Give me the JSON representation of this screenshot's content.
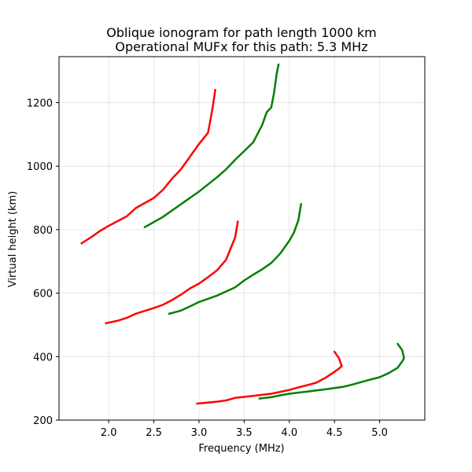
{
  "chart_data": {
    "type": "line",
    "title": "Oblique ionogram for path length 1000 km",
    "subtitle": "Operational MUFx for this path: 5.3 MHz",
    "xlabel": "Frequency (MHz)",
    "ylabel": "Virtual height (km)",
    "xlim": [
      1.45,
      5.5
    ],
    "ylim": [
      200,
      1345
    ],
    "xticks": [
      2.0,
      2.5,
      3.0,
      3.5,
      4.0,
      4.5,
      5.0
    ],
    "xtick_labels": [
      "2.0",
      "2.5",
      "3.0",
      "3.5",
      "4.0",
      "4.5",
      "5.0"
    ],
    "yticks": [
      200,
      400,
      600,
      800,
      1000,
      1200
    ],
    "ytick_labels": [
      "200",
      "400",
      "600",
      "800",
      "1000",
      "1200"
    ],
    "grid": true,
    "legend": "none",
    "series": [
      {
        "color": "#ff0000",
        "x": [
          2.98,
          3.1,
          3.2,
          3.3,
          3.4,
          3.6,
          3.8,
          3.9,
          4.0,
          4.1,
          4.2,
          4.3,
          4.4,
          4.5,
          4.55,
          4.58,
          4.55,
          4.5
        ],
        "y": [
          252,
          255,
          258,
          262,
          270,
          276,
          283,
          289,
          295,
          303,
          310,
          318,
          333,
          352,
          362,
          370,
          395,
          415
        ]
      },
      {
        "color": "#008000",
        "x": [
          3.67,
          3.8,
          3.9,
          4.0,
          4.2,
          4.4,
          4.6,
          4.7,
          4.8,
          4.9,
          5.0,
          5.1,
          5.2,
          5.25,
          5.27,
          5.25,
          5.2
        ],
        "y": [
          268,
          272,
          278,
          283,
          290,
          297,
          305,
          312,
          320,
          328,
          335,
          348,
          365,
          385,
          395,
          420,
          440
        ]
      },
      {
        "color": "#ff0000",
        "x": [
          1.97,
          2.1,
          2.2,
          2.3,
          2.5,
          2.6,
          2.7,
          2.8,
          2.9,
          3.0,
          3.1,
          3.2,
          3.3,
          3.35,
          3.4,
          3.43
        ],
        "y": [
          505,
          513,
          522,
          535,
          553,
          563,
          578,
          595,
          615,
          630,
          650,
          672,
          705,
          740,
          775,
          825
        ]
      },
      {
        "color": "#008000",
        "x": [
          2.67,
          2.8,
          2.9,
          3.0,
          3.2,
          3.4,
          3.5,
          3.6,
          3.7,
          3.8,
          3.9,
          4.0,
          4.05,
          4.1,
          4.13
        ],
        "y": [
          535,
          545,
          558,
          572,
          592,
          618,
          640,
          658,
          675,
          695,
          725,
          765,
          790,
          830,
          880
        ]
      },
      {
        "color": "#ff0000",
        "x": [
          1.7,
          1.8,
          1.9,
          2.0,
          2.2,
          2.3,
          2.5,
          2.6,
          2.7,
          2.8,
          2.9,
          3.0,
          3.1,
          3.13,
          3.16,
          3.18
        ],
        "y": [
          757,
          775,
          795,
          812,
          842,
          868,
          900,
          925,
          960,
          990,
          1030,
          1070,
          1105,
          1150,
          1200,
          1240
        ]
      },
      {
        "color": "#008000",
        "x": [
          2.4,
          2.6,
          2.8,
          3.0,
          3.2,
          3.3,
          3.4,
          3.6,
          3.7,
          3.75,
          3.8,
          3.83,
          3.86,
          3.88
        ],
        "y": [
          808,
          840,
          880,
          920,
          965,
          990,
          1020,
          1075,
          1130,
          1170,
          1185,
          1230,
          1290,
          1320
        ]
      }
    ]
  }
}
